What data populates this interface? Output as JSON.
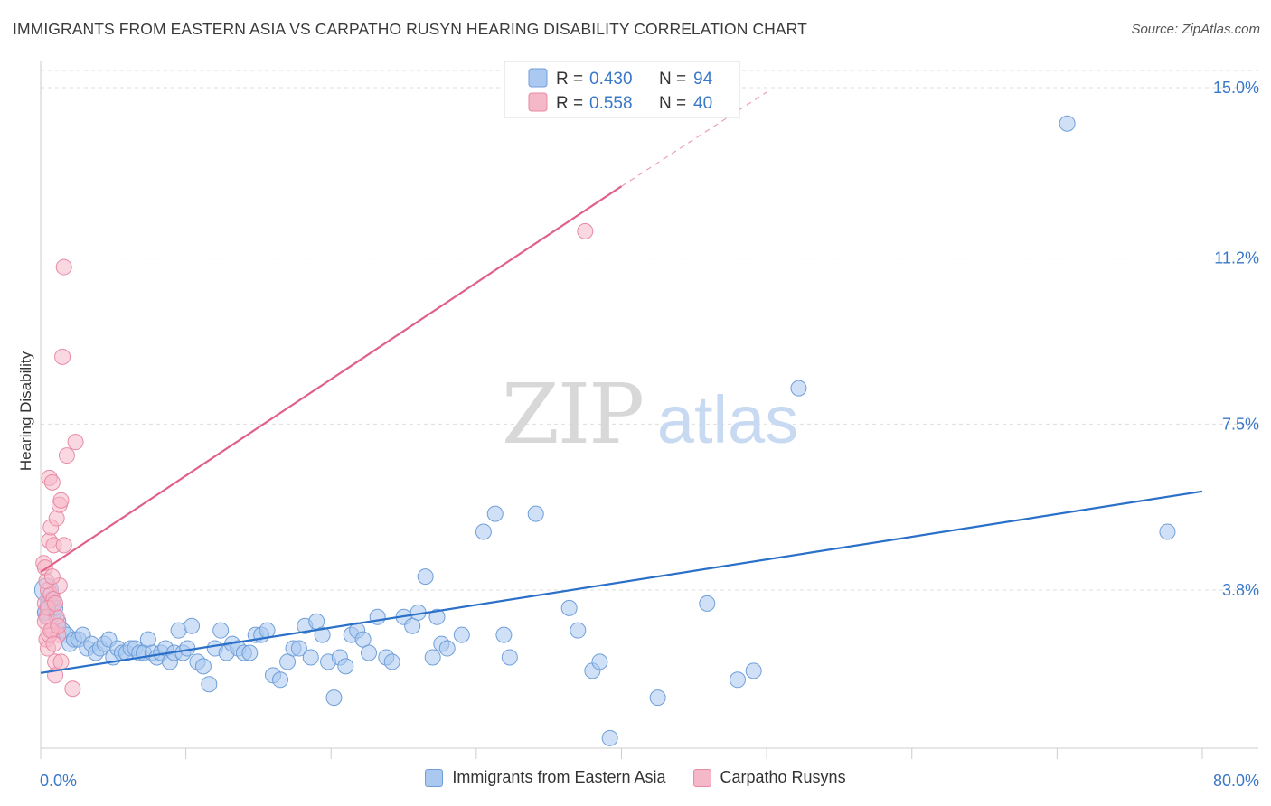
{
  "header": {
    "title": "IMMIGRANTS FROM EASTERN ASIA VS CARPATHO RUSYN HEARING DISABILITY CORRELATION CHART",
    "source": "Source: ZipAtlas.com"
  },
  "watermark": {
    "zip": "ZIP",
    "atlas": "atlas"
  },
  "colors": {
    "blue_fill": "#aac8f0",
    "blue_stroke": "#6f9fd8",
    "blue_line": "#2a70c8",
    "pink_fill": "#f5b8c8",
    "pink_stroke": "#e88aa5",
    "pink_line": "#e0608a",
    "tick_label": "#3a78c8",
    "grid": "#dddddd"
  },
  "chart_data": {
    "type": "scatter",
    "title": "IMMIGRANTS FROM EASTERN ASIA VS CARPATHO RUSYN HEARING DISABILITY CORRELATION CHART",
    "xlabel": "",
    "ylabel": "Hearing Disability",
    "xlim": [
      0,
      80
    ],
    "ylim": [
      0,
      15.5
    ],
    "x_tick_labels": [
      {
        "value": 0,
        "label": "0.0%"
      },
      {
        "value": 80,
        "label": "80.0%"
      }
    ],
    "y_ticks": [
      {
        "value": 3.8,
        "label": "3.8%"
      },
      {
        "value": 7.5,
        "label": "7.5%"
      },
      {
        "value": 11.2,
        "label": "11.2%"
      },
      {
        "value": 15.0,
        "label": "15.0%"
      }
    ],
    "grid": true,
    "legend_position": "top-center",
    "stats": [
      {
        "r_label": "R =",
        "r_value": "0.430",
        "n_label": "N =",
        "n_value": "94"
      },
      {
        "r_label": "R =",
        "r_value": "0.558",
        "n_label": "N =",
        "n_value": "40"
      }
    ],
    "series": [
      {
        "name": "Immigrants from Eastern Asia",
        "trendline": {
          "x": [
            0,
            80
          ],
          "y": [
            1.95,
            6.0
          ]
        },
        "points": [
          [
            0.3,
            3.3
          ],
          [
            0.5,
            3.5
          ],
          [
            0.8,
            3.6
          ],
          [
            1.0,
            3.4
          ],
          [
            1.2,
            3.1
          ],
          [
            1.5,
            2.9
          ],
          [
            1.8,
            2.8
          ],
          [
            2.0,
            2.6
          ],
          [
            2.3,
            2.7
          ],
          [
            2.6,
            2.7
          ],
          [
            2.9,
            2.8
          ],
          [
            3.2,
            2.5
          ],
          [
            3.5,
            2.6
          ],
          [
            3.8,
            2.4
          ],
          [
            4.1,
            2.5
          ],
          [
            4.4,
            2.6
          ],
          [
            4.7,
            2.7
          ],
          [
            5.0,
            2.3
          ],
          [
            5.3,
            2.5
          ],
          [
            5.6,
            2.4
          ],
          [
            5.9,
            2.4
          ],
          [
            6.2,
            2.5
          ],
          [
            6.5,
            2.5
          ],
          [
            6.8,
            2.4
          ],
          [
            7.1,
            2.4
          ],
          [
            7.4,
            2.7
          ],
          [
            7.7,
            2.4
          ],
          [
            8.0,
            2.3
          ],
          [
            8.3,
            2.4
          ],
          [
            8.6,
            2.5
          ],
          [
            8.9,
            2.2
          ],
          [
            9.2,
            2.4
          ],
          [
            9.5,
            2.9
          ],
          [
            9.8,
            2.4
          ],
          [
            10.1,
            2.5
          ],
          [
            10.4,
            3.0
          ],
          [
            10.8,
            2.2
          ],
          [
            11.2,
            2.1
          ],
          [
            11.6,
            1.7
          ],
          [
            12.0,
            2.5
          ],
          [
            12.4,
            2.9
          ],
          [
            12.8,
            2.4
          ],
          [
            13.2,
            2.6
          ],
          [
            13.6,
            2.5
          ],
          [
            14.0,
            2.4
          ],
          [
            14.4,
            2.4
          ],
          [
            14.8,
            2.8
          ],
          [
            15.2,
            2.8
          ],
          [
            15.6,
            2.9
          ],
          [
            16.0,
            1.9
          ],
          [
            16.5,
            1.8
          ],
          [
            17.0,
            2.2
          ],
          [
            17.4,
            2.5
          ],
          [
            17.8,
            2.5
          ],
          [
            18.2,
            3.0
          ],
          [
            18.6,
            2.3
          ],
          [
            19.0,
            3.1
          ],
          [
            19.4,
            2.8
          ],
          [
            19.8,
            2.2
          ],
          [
            20.2,
            1.4
          ],
          [
            20.6,
            2.3
          ],
          [
            21.0,
            2.1
          ],
          [
            21.4,
            2.8
          ],
          [
            21.8,
            2.9
          ],
          [
            22.2,
            2.7
          ],
          [
            22.6,
            2.4
          ],
          [
            23.2,
            3.2
          ],
          [
            23.8,
            2.3
          ],
          [
            24.2,
            2.2
          ],
          [
            25.0,
            3.2
          ],
          [
            25.6,
            3.0
          ],
          [
            26.0,
            3.3
          ],
          [
            26.5,
            4.1
          ],
          [
            27.0,
            2.3
          ],
          [
            27.3,
            3.2
          ],
          [
            27.6,
            2.6
          ],
          [
            28.0,
            2.5
          ],
          [
            29.0,
            2.8
          ],
          [
            30.5,
            5.1
          ],
          [
            31.3,
            5.5
          ],
          [
            31.9,
            2.8
          ],
          [
            32.3,
            2.3
          ],
          [
            34.1,
            5.5
          ],
          [
            36.4,
            3.4
          ],
          [
            37.0,
            2.9
          ],
          [
            38.0,
            2.0
          ],
          [
            38.5,
            2.2
          ],
          [
            39.2,
            0.5
          ],
          [
            42.5,
            1.4
          ],
          [
            45.9,
            3.5
          ],
          [
            48.0,
            1.8
          ],
          [
            49.1,
            2.0
          ],
          [
            52.2,
            8.3
          ],
          [
            70.7,
            14.2
          ],
          [
            77.6,
            5.1
          ]
        ],
        "large_points": [
          [
            0.4,
            3.8
          ],
          [
            0.6,
            3.3
          ]
        ]
      },
      {
        "name": "Carpatho Rusyns",
        "trendline": {
          "x": [
            0,
            40
          ],
          "y": [
            4.2,
            12.8
          ]
        },
        "trendline_dashed": {
          "x": [
            40,
            50
          ],
          "y": [
            12.8,
            14.9
          ]
        },
        "points": [
          [
            0.2,
            4.4
          ],
          [
            0.3,
            4.3
          ],
          [
            0.3,
            3.5
          ],
          [
            0.4,
            3.2
          ],
          [
            0.4,
            2.7
          ],
          [
            0.5,
            2.5
          ],
          [
            0.5,
            3.8
          ],
          [
            0.6,
            6.3
          ],
          [
            0.6,
            4.9
          ],
          [
            0.7,
            5.2
          ],
          [
            0.7,
            3.7
          ],
          [
            0.8,
            6.2
          ],
          [
            0.8,
            2.9
          ],
          [
            0.9,
            4.8
          ],
          [
            0.9,
            3.6
          ],
          [
            1.0,
            2.2
          ],
          [
            1.0,
            1.9
          ],
          [
            1.1,
            5.4
          ],
          [
            1.1,
            3.2
          ],
          [
            1.2,
            2.8
          ],
          [
            1.3,
            5.7
          ],
          [
            1.3,
            3.9
          ],
          [
            1.4,
            5.8
          ],
          [
            1.4,
            2.2
          ],
          [
            1.5,
            9.0
          ],
          [
            1.6,
            4.8
          ],
          [
            1.6,
            11.0
          ],
          [
            1.8,
            6.8
          ],
          [
            2.2,
            1.6
          ],
          [
            2.4,
            7.1
          ],
          [
            37.5,
            11.8
          ],
          [
            0.5,
            3.4
          ],
          [
            0.4,
            4.0
          ],
          [
            0.6,
            2.8
          ],
          [
            0.3,
            3.1
          ],
          [
            0.7,
            2.9
          ],
          [
            0.9,
            2.6
          ],
          [
            1.0,
            3.5
          ],
          [
            0.8,
            4.1
          ],
          [
            1.2,
            3.0
          ]
        ]
      }
    ]
  }
}
